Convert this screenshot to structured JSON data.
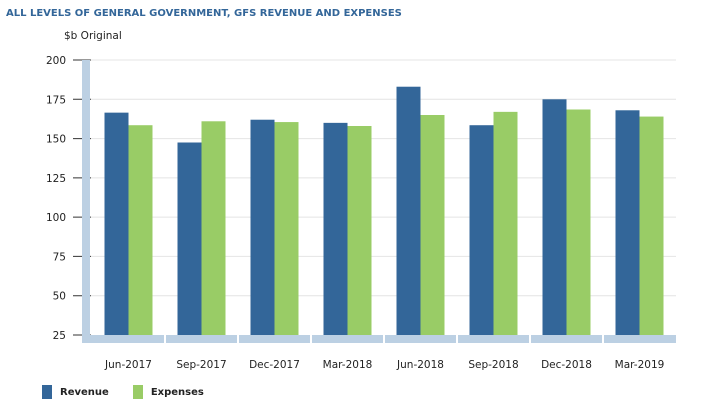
{
  "chart_data": {
    "type": "bar",
    "title": "ALL LEVELS OF GENERAL GOVERNMENT, GFS REVENUE AND EXPENSES",
    "ylabel": "$b Original",
    "xlabel": "",
    "ylim": [
      25,
      200
    ],
    "yticks": [
      25,
      50,
      75,
      100,
      125,
      150,
      175,
      200
    ],
    "grid": true,
    "legend_position": "bottom-left",
    "categories": [
      "Jun-2017",
      "Sep-2017",
      "Dec-2017",
      "Mar-2018",
      "Jun-2018",
      "Sep-2018",
      "Dec-2018",
      "Mar-2019"
    ],
    "series": [
      {
        "name": "Revenue",
        "color": "#336699",
        "values": [
          166.5,
          147.5,
          162,
          160,
          183,
          158.5,
          175,
          168
        ]
      },
      {
        "name": "Expenses",
        "color": "#99cc66",
        "values": [
          158.5,
          161,
          160.5,
          158,
          165,
          167,
          168.5,
          164
        ]
      }
    ]
  }
}
